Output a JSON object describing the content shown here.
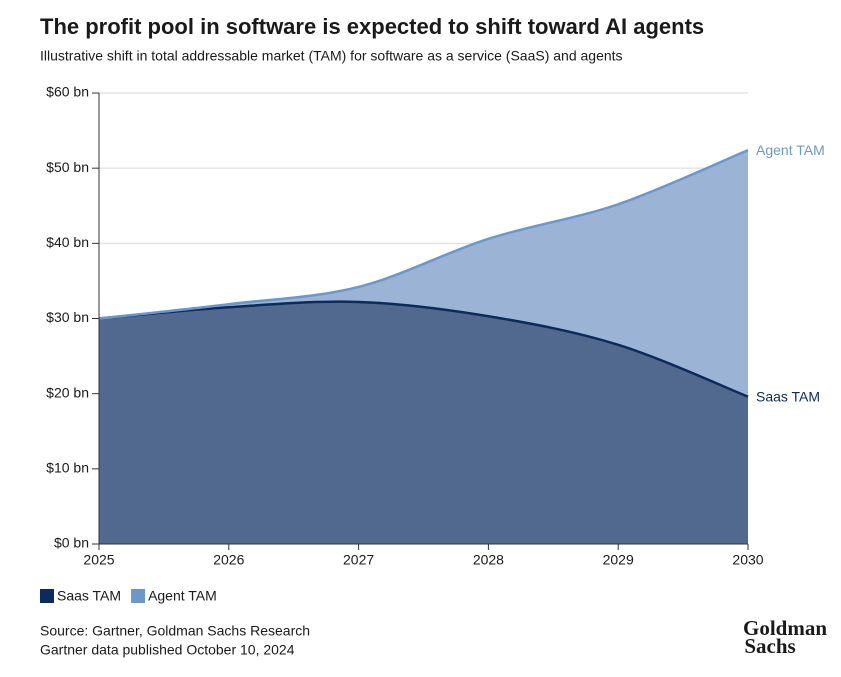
{
  "chart_data": {
    "type": "stacked_area",
    "title": "The profit pool in software is expected to shift toward AI agents",
    "subtitle": "Illustrative shift in total addressable market (TAM) for software as a service (SaaS) and agents",
    "x": [
      2025,
      2026,
      2027,
      2028,
      2029,
      2030
    ],
    "xlim": [
      2025,
      2030
    ],
    "xticks": [
      2025,
      2026,
      2027,
      2028,
      2029,
      2030
    ],
    "ylim": [
      0,
      60
    ],
    "yticks": [
      {
        "value": 0,
        "label": "$0 bn"
      },
      {
        "value": 10,
        "label": "$10 bn"
      },
      {
        "value": 20,
        "label": "$20 bn"
      },
      {
        "value": 30,
        "label": "$30 bn"
      },
      {
        "value": 40,
        "label": "$40 bn"
      },
      {
        "value": 50,
        "label": "$50 bn"
      },
      {
        "value": 60,
        "label": "$60 bn"
      }
    ],
    "grid": true,
    "series": [
      {
        "name": "Saas TAM",
        "color": "#0c2b5c",
        "fill": "#51698f",
        "values": [
          30,
          31.5,
          32.2,
          30.3,
          26.5,
          19.6
        ]
      },
      {
        "name": "Agent TAM",
        "color": "#6d97cb",
        "fill": "#9bb4d6",
        "values": [
          0,
          0.4,
          2.0,
          10.3,
          18.7,
          32.8
        ]
      }
    ],
    "source": [
      "Source: Gartner, Goldman Sachs Research",
      "Gartner data published October 10, 2024"
    ],
    "logo": [
      "Goldman",
      "Sachs"
    ]
  }
}
